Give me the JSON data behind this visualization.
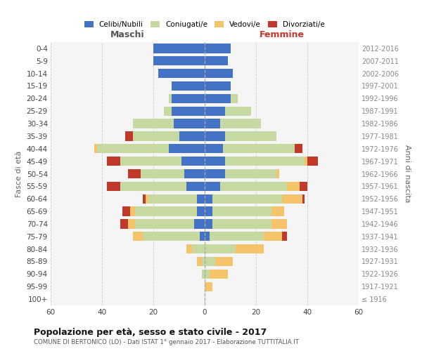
{
  "age_groups": [
    "100+",
    "95-99",
    "90-94",
    "85-89",
    "80-84",
    "75-79",
    "70-74",
    "65-69",
    "60-64",
    "55-59",
    "50-54",
    "45-49",
    "40-44",
    "35-39",
    "30-34",
    "25-29",
    "20-24",
    "15-19",
    "10-14",
    "5-9",
    "0-4"
  ],
  "birth_years": [
    "≤ 1916",
    "1917-1921",
    "1922-1926",
    "1927-1931",
    "1932-1936",
    "1937-1941",
    "1942-1946",
    "1947-1951",
    "1952-1956",
    "1957-1961",
    "1962-1966",
    "1967-1971",
    "1972-1976",
    "1977-1981",
    "1982-1986",
    "1987-1991",
    "1992-1996",
    "1997-2001",
    "2002-2006",
    "2007-2011",
    "2012-2016"
  ],
  "maschi": {
    "celibe": [
      0,
      0,
      0,
      0,
      0,
      2,
      4,
      3,
      3,
      7,
      8,
      9,
      14,
      10,
      12,
      13,
      13,
      13,
      18,
      20,
      20
    ],
    "coniugato": [
      0,
      0,
      1,
      1,
      5,
      22,
      23,
      24,
      19,
      26,
      17,
      24,
      28,
      18,
      16,
      3,
      1,
      0,
      0,
      0,
      0
    ],
    "vedovo": [
      0,
      0,
      0,
      2,
      2,
      4,
      3,
      2,
      1,
      0,
      0,
      0,
      1,
      0,
      0,
      0,
      0,
      0,
      0,
      0,
      0
    ],
    "divorziato": [
      0,
      0,
      0,
      0,
      0,
      0,
      3,
      3,
      1,
      5,
      5,
      5,
      0,
      3,
      0,
      0,
      0,
      0,
      0,
      0,
      0
    ]
  },
  "femmine": {
    "celibe": [
      0,
      0,
      0,
      0,
      0,
      2,
      3,
      3,
      3,
      6,
      8,
      8,
      7,
      8,
      6,
      8,
      10,
      10,
      11,
      9,
      10
    ],
    "coniugato": [
      0,
      0,
      2,
      4,
      12,
      21,
      23,
      23,
      27,
      26,
      20,
      31,
      28,
      20,
      16,
      10,
      3,
      0,
      0,
      0,
      0
    ],
    "vedovo": [
      0,
      3,
      7,
      7,
      11,
      7,
      6,
      5,
      8,
      5,
      1,
      1,
      0,
      0,
      0,
      0,
      0,
      0,
      0,
      0,
      0
    ],
    "divorziato": [
      0,
      0,
      0,
      0,
      0,
      2,
      0,
      0,
      1,
      3,
      0,
      4,
      3,
      0,
      0,
      0,
      0,
      0,
      0,
      0,
      0
    ]
  },
  "colors": {
    "celibe": "#4472C4",
    "coniugato": "#c5d9a0",
    "vedovo": "#f5c36a",
    "divorziato": "#c0392b"
  },
  "xlim": 60,
  "title": "Popolazione per età, sesso e stato civile - 2017",
  "subtitle": "COMUNE DI BERTONICO (LO) - Dati ISTAT 1° gennaio 2017 - Elaborazione TUTTITALIA.IT",
  "ylabel_left": "Fasce di età",
  "ylabel_right": "Anni di nascita",
  "xlabel_left": "Maschi",
  "xlabel_right": "Femmine",
  "maschi_color": "#555555",
  "femmine_color": "#c0392b",
  "legend_labels": [
    "Celibi/Nubili",
    "Coniugati/e",
    "Vedovi/e",
    "Divorziati/e"
  ]
}
